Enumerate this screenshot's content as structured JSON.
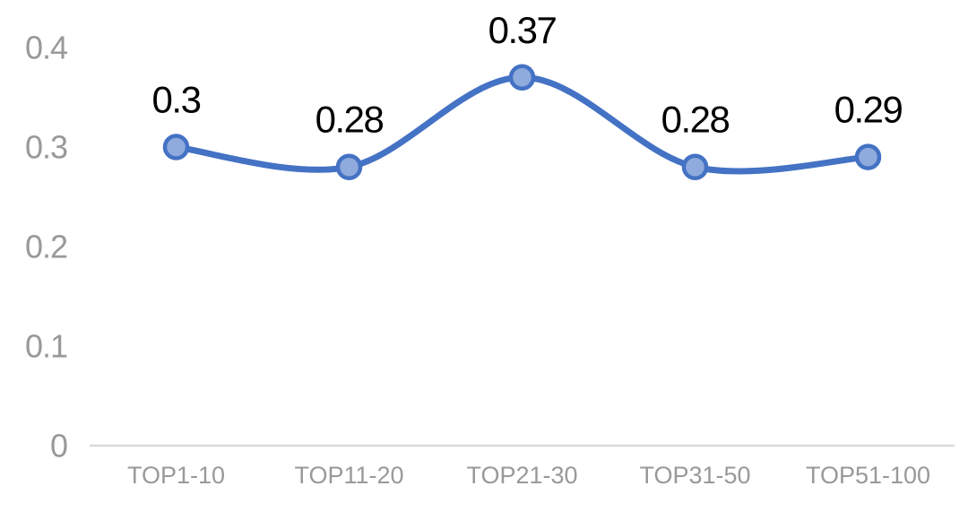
{
  "chart_data": {
    "type": "line",
    "title": "",
    "xlabel": "",
    "ylabel": "",
    "categories": [
      "TOP1-10",
      "TOP11-20",
      "TOP21-30",
      "TOP31-50",
      "TOP51-100"
    ],
    "series": [
      {
        "name": "",
        "values": [
          0.3,
          0.28,
          0.37,
          0.28,
          0.29
        ],
        "data_labels": [
          "0.3",
          "0.28",
          "0.37",
          "0.28",
          "0.29"
        ]
      }
    ],
    "y_ticks": [
      {
        "value": 0,
        "label": "0"
      },
      {
        "value": 0.1,
        "label": "0.1"
      },
      {
        "value": 0.2,
        "label": "0.2"
      },
      {
        "value": 0.3,
        "label": "0.3"
      },
      {
        "value": 0.4,
        "label": "0.4"
      }
    ],
    "ylim": [
      0,
      0.4
    ],
    "grid": false,
    "legend": false,
    "smooth": true,
    "marker": "circle",
    "colors": {
      "line": "#4472C4",
      "marker_fill": "#8FAADC",
      "marker_stroke": "#4472C4",
      "data_label": "#000000",
      "tick_label": "#999999",
      "category_label": "#999999",
      "axis_line": "#D9D9D9",
      "background": "#FFFFFF"
    }
  }
}
